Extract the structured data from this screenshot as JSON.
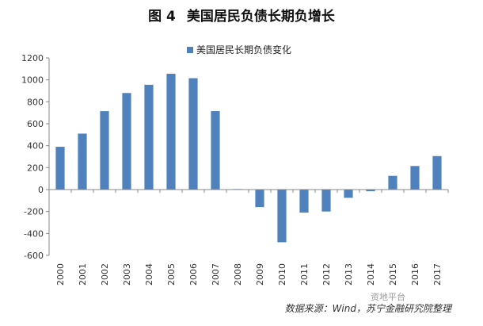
{
  "title": {
    "figure": "图 4",
    "text": "美国居民负债长期负增长"
  },
  "source": "数据来源：Wind，苏宁金融研究院整理",
  "watermark": "资地平台",
  "chart_data": {
    "type": "bar",
    "categories": [
      "2000",
      "2001",
      "2002",
      "2003",
      "2004",
      "2005",
      "2006",
      "2007",
      "2008",
      "2009",
      "2010",
      "2011",
      "2012",
      "2013",
      "2014",
      "2015",
      "2016",
      "2017"
    ],
    "series": [
      {
        "name": "美国居民长期负债变化",
        "values": [
          390,
          510,
          715,
          880,
          955,
          1055,
          1015,
          715,
          5,
          -160,
          -480,
          -210,
          -200,
          -75,
          -15,
          125,
          215,
          305
        ]
      }
    ],
    "yticks": [
      1200,
      1000,
      800,
      600,
      400,
      200,
      0,
      -200,
      -400,
      -600
    ],
    "ylim": [
      -600,
      1200
    ],
    "bar_color": "#4f81bd",
    "legend_position": "top-center",
    "grid": false
  }
}
